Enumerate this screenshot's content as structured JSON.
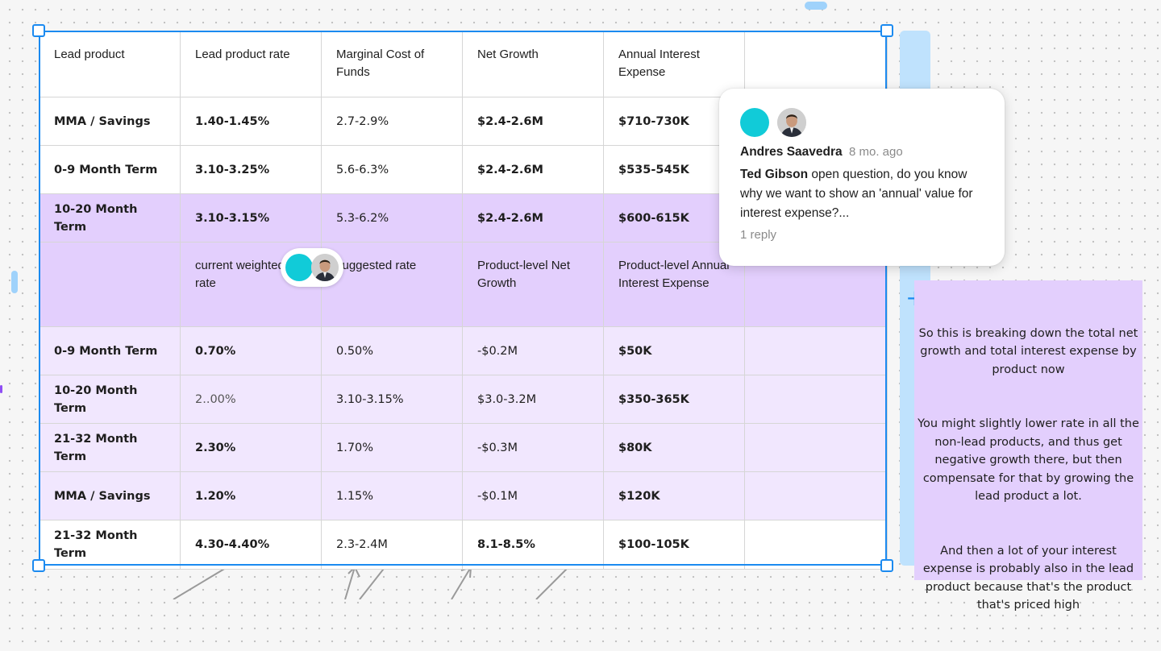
{
  "table": {
    "rows": [
      {
        "style": "header",
        "cells": [
          "Lead product",
          "Lead product rate",
          "Marginal Cost of Funds",
          "Net Growth",
          "Annual Interest Expense",
          ""
        ]
      },
      {
        "style": "white",
        "cells": [
          "MMA / Savings",
          "1.40-1.45%",
          "2.7-2.9%",
          "$2.4-2.6M",
          "$710-730K",
          ""
        ]
      },
      {
        "style": "white",
        "cells": [
          "0-9 Month Term",
          "3.10-3.25%",
          "5.6-6.3%",
          "$2.4-2.6M",
          "$535-545K",
          ""
        ]
      },
      {
        "style": "purple",
        "cells": [
          "10-20 Month Term",
          "3.10-3.15%",
          "5.3-6.2%",
          "$2.4-2.6M",
          "$600-615K",
          ""
        ]
      },
      {
        "style": "purple-header",
        "cells": [
          "",
          "current weighted rate",
          "suggested rate",
          "Product-level Net Growth",
          "Product-level Annual Interest Expense",
          ""
        ]
      },
      {
        "style": "light",
        "cells": [
          "0-9 Month Term",
          "0.70%",
          "0.50%",
          "-$0.2M",
          "$50K",
          ""
        ]
      },
      {
        "style": "light",
        "cells": [
          "10-20 Month Term",
          "2..00%",
          "3.10-3.15%",
          "$3.0-3.2M",
          "$350-365K",
          ""
        ]
      },
      {
        "style": "light",
        "cells": [
          "21-32 Month Term",
          "2.30%",
          "1.70%",
          "-$0.3M",
          "$80K",
          ""
        ]
      },
      {
        "style": "light",
        "cells": [
          "MMA / Savings",
          "1.20%",
          "1.15%",
          "-$0.1M",
          "$120K",
          ""
        ]
      },
      {
        "style": "white",
        "cells": [
          "21-32 Month Term",
          "4.30-4.40%",
          "2.3-2.4M",
          "8.1-8.5%",
          "$100-105K",
          ""
        ]
      }
    ]
  },
  "comment": {
    "author": "Andres Saavedra",
    "time": "8 mo. ago",
    "mention": "Ted Gibson",
    "body": " open question, do you know why we want to show an 'annual' value for interest expense?...",
    "replies": "1 reply"
  },
  "sticky": {
    "paragraphs": [
      "So this is breaking down the total net growth and total interest expense by product now",
      "You might slightly lower rate in all the non-lead products, and thus get negative growth there, but then compensate for that by growing the lead product a lot.",
      "And then a lot of your interest expense is probably also in the lead product because that's the product that's priced high"
    ]
  },
  "controls": {
    "add_column": "+"
  },
  "colors": {
    "selection": "#1b8af0",
    "purple_row": "#e3cffd",
    "light_purple_row": "#f1e7fe",
    "avatar_teal": "#11cbd8"
  },
  "icons": [
    "plus-icon",
    "avatar-teal",
    "avatar-photo"
  ]
}
